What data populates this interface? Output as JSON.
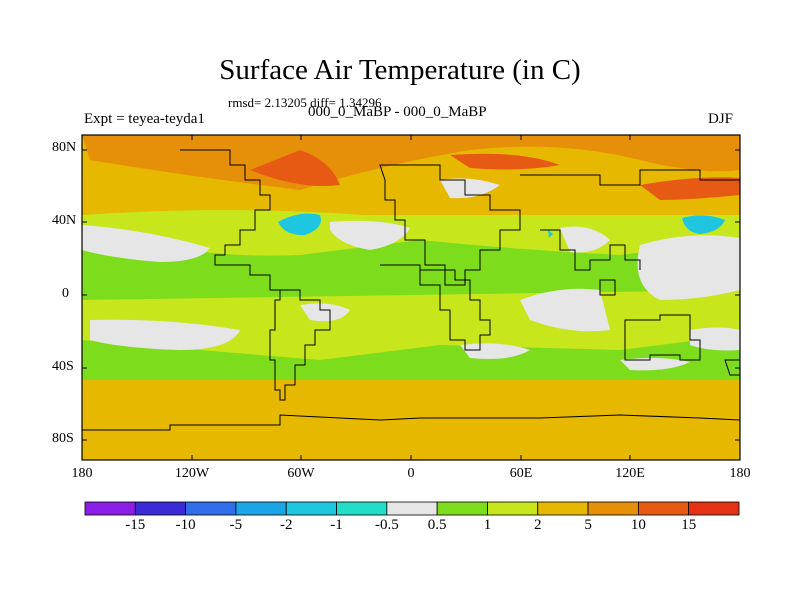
{
  "title": "Surface Air Temperature (in C)",
  "stats_line": "rmsd= 2.13205 diff= 1.34296",
  "experiment_label": "Expt = teyea-teyda1",
  "comparison_label": "000_0_MaBP - 000_0_MaBP",
  "season_label": "DJF",
  "y_tick_labels": [
    "80N",
    "40N",
    "0",
    "40S",
    "80S"
  ],
  "x_tick_labels": [
    "180",
    "120W",
    "60W",
    "0",
    "60E",
    "120E",
    "180"
  ],
  "colorbar": {
    "labels": [
      "-15",
      "-10",
      "-5",
      "-2",
      "-1",
      "-0.5",
      "0.5",
      "1",
      "2",
      "5",
      "10",
      "15"
    ],
    "colors": [
      "#8a1ee6",
      "#3a2ad8",
      "#2f6ee8",
      "#1aa6e6",
      "#1fc6e0",
      "#22ddc8",
      "#e6e6e6",
      "#7ddc1c",
      "#c8e61c",
      "#e6b800",
      "#e6900a",
      "#e65a14",
      "#e63214"
    ]
  },
  "chart_data": {
    "type": "heatmap",
    "title": "Surface Air Temperature (in C)",
    "lon_range": [
      -180,
      180
    ],
    "lat_range": [
      -90,
      90
    ],
    "units": "C",
    "levels": [
      -15,
      -10,
      -5,
      -2,
      -1,
      -0.5,
      0.5,
      1,
      2,
      5,
      10,
      15
    ]
  }
}
